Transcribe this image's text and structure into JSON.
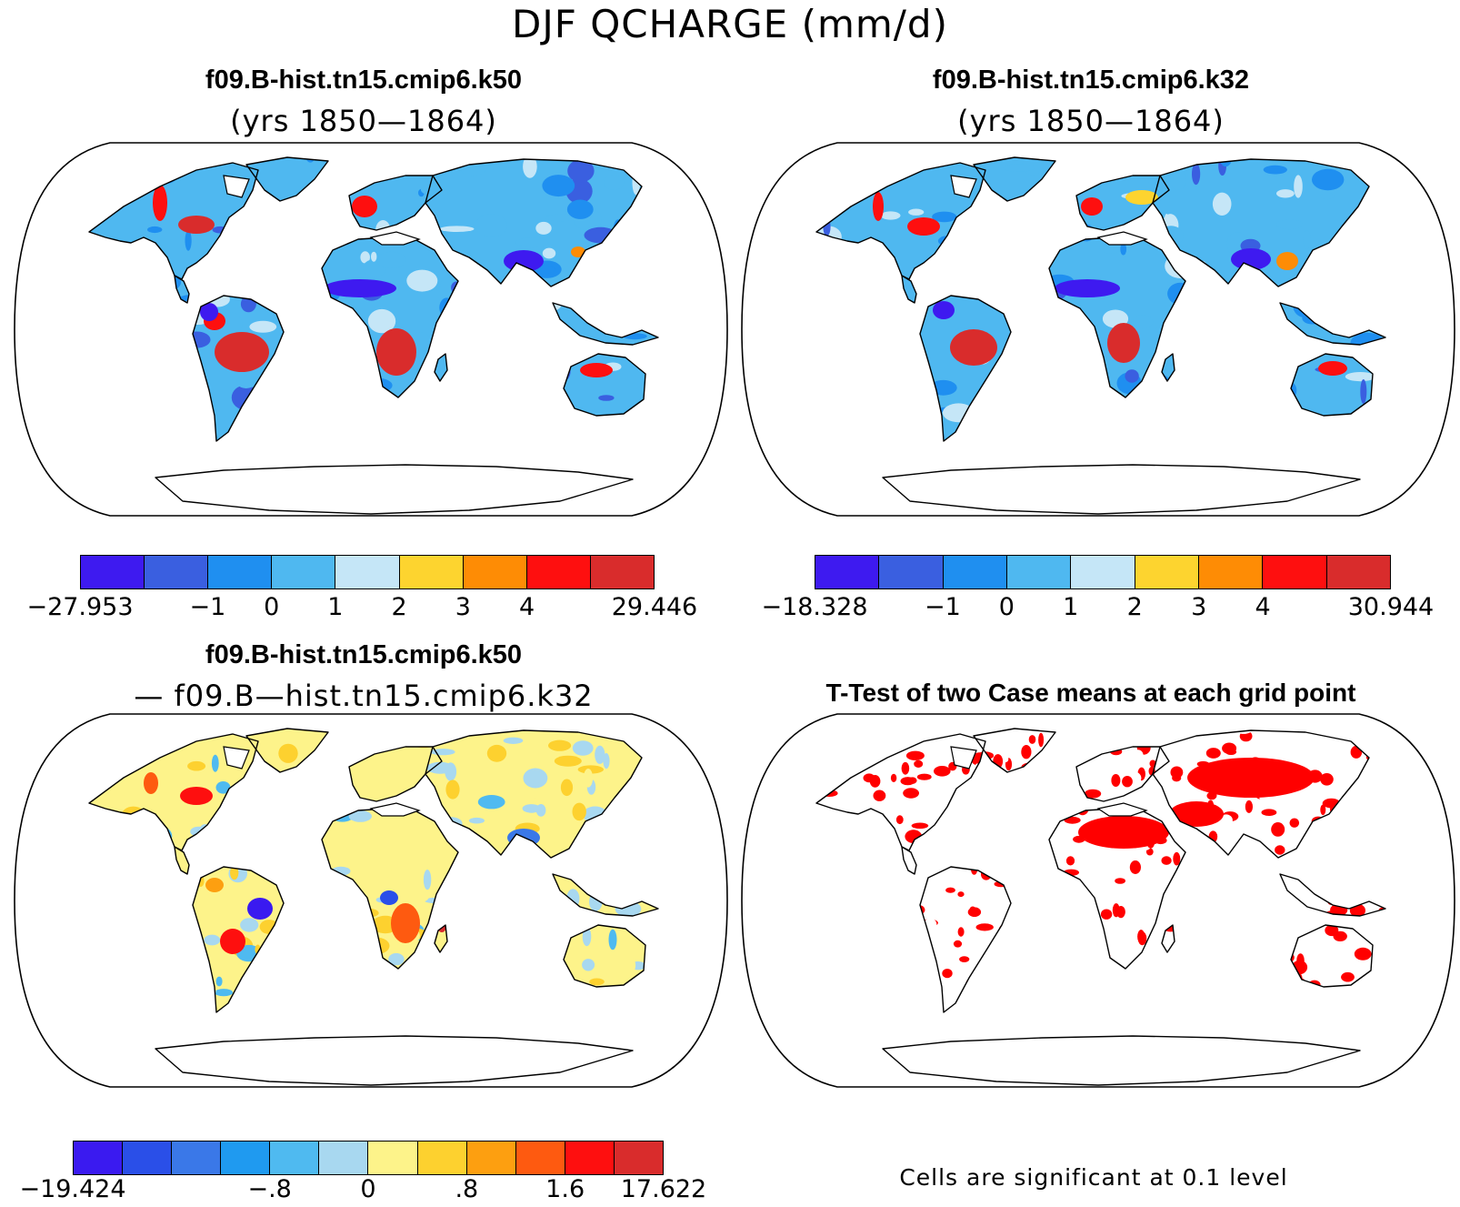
{
  "figure": {
    "title": "DJF QCHARGE (mm/d)",
    "footnote": "Cells are significant at 0.1 level"
  },
  "colors": {
    "ocean": "#ffffff",
    "coast": "#000000",
    "significant": "#ff0000"
  },
  "panels": [
    {
      "id": "case1",
      "title": "f09.B-hist.tn15.cmip6.k50",
      "subtitle": "(yrs 1850—1864)",
      "colorbar": {
        "colors": [
          "#3e1af0",
          "#3a5fe0",
          "#1f8ff0",
          "#4fb8f0",
          "#c5e6f7",
          "#fdd42f",
          "#fe8c05",
          "#fe0f0f",
          "#d92c2c"
        ],
        "labels": [
          "−27.953",
          "−1",
          "0",
          "1",
          "2",
          "3",
          "4",
          "29.446"
        ],
        "label_edges": [
          0,
          2,
          3,
          4,
          5,
          6,
          7,
          9
        ]
      }
    },
    {
      "id": "case2",
      "title": "f09.B-hist.tn15.cmip6.k32",
      "subtitle": "(yrs 1850—1864)",
      "colorbar": {
        "colors": [
          "#3e1af0",
          "#3a5fe0",
          "#1f8ff0",
          "#4fb8f0",
          "#c5e6f7",
          "#fdd42f",
          "#fe8c05",
          "#fe0f0f",
          "#d92c2c"
        ],
        "labels": [
          "−18.328",
          "−1",
          "0",
          "1",
          "2",
          "3",
          "4",
          "30.944"
        ],
        "label_edges": [
          0,
          2,
          3,
          4,
          5,
          6,
          7,
          9
        ]
      }
    },
    {
      "id": "difference",
      "title": "f09.B-hist.tn15.cmip6.k50",
      "subtitle": "— f09.B—hist.tn15.cmip6.k32",
      "colorbar": {
        "colors": [
          "#3a1af0",
          "#2a4fe8",
          "#3a78e8",
          "#1f9af0",
          "#4fbaf0",
          "#a8d8f0",
          "#fdf38a",
          "#fdd12f",
          "#fd9f10",
          "#fe5a10",
          "#fe0f0f",
          "#d92c2c"
        ],
        "labels": [
          "−19.424",
          "−.8",
          "0",
          ".8",
          "1.6",
          "17.622"
        ],
        "label_edges": [
          0,
          4,
          6,
          8,
          10,
          12
        ]
      }
    },
    {
      "id": "ttest",
      "title": "T-Test of two Case means at each grid point"
    }
  ]
}
